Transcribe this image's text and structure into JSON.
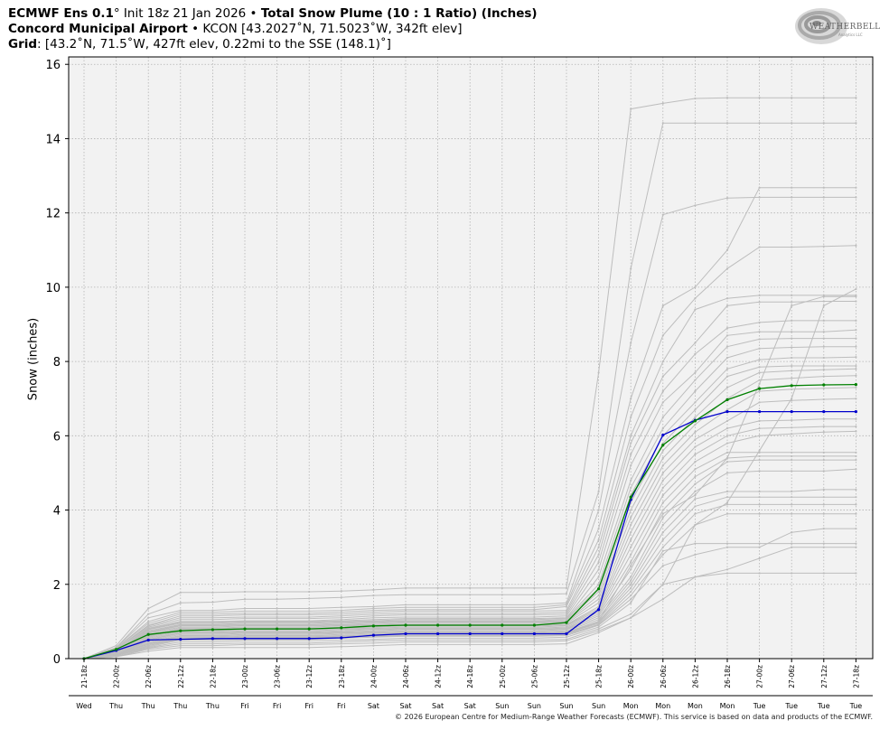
{
  "header": {
    "line1_model": "ECMWF Ens 0.1",
    "line1_deg": "°",
    "line1_init": " Init 18z 21 Jan 2026 • ",
    "line1_product": "Total Snow Plume (10 : 1 Ratio) (Inches)",
    "line2_site": "Concord Municipal Airport",
    "line2_rest": " • KCON [43.2027˚N, 71.5023˚W, 342ft elev]",
    "line3_grid": "Grid",
    "line3_rest": ": [43.2˚N, 71.5˚W, 427ft elev, 0.22mi to the SSE (148.1)˚]"
  },
  "logo": {
    "text": "WEATHERBELL",
    "sub": "Analytics LLC",
    "icon": "swirl-logo-icon"
  },
  "credit": "© 2026 European Centre for Medium-Range Weather Forecasts (ECMWF). This service is based on data and products of the ECMWF.",
  "chart_data": {
    "type": "line",
    "title": "Total Snow Plume (10 : 1 Ratio) (Inches)",
    "ylabel": "Snow (inches)",
    "ylim": [
      0,
      16.2
    ],
    "yticks": [
      0,
      2,
      4,
      6,
      8,
      10,
      12,
      14,
      16
    ],
    "grid": true,
    "categories": [
      "21-18z",
      "22-00z",
      "22-06z",
      "22-12z",
      "22-18z",
      "23-00z",
      "23-06z",
      "23-12z",
      "23-18z",
      "24-00z",
      "24-06z",
      "24-12z",
      "24-18z",
      "25-00z",
      "25-06z",
      "25-12z",
      "25-18z",
      "26-00z",
      "26-06z",
      "26-12z",
      "26-18z",
      "27-00z",
      "27-06z",
      "27-12z",
      "27-18z"
    ],
    "day_labels": [
      "Wed",
      "Thu",
      "Thu",
      "Thu",
      "Thu",
      "Fri",
      "Fri",
      "Fri",
      "Fri",
      "Sat",
      "Sat",
      "Sat",
      "Sat",
      "Sun",
      "Sun",
      "Sun",
      "Sun",
      "Mon",
      "Mon",
      "Mon",
      "Mon",
      "Tue",
      "Tue",
      "Tue",
      "Tue"
    ],
    "colors": {
      "member": "#bdbdbd",
      "mean": "#008000",
      "control": "#0000cc",
      "plot_bg": "#f2f2f2",
      "grid": "#b3b3b3"
    },
    "series": [
      {
        "role": "mean",
        "color": "#008000",
        "values": [
          0,
          0.25,
          0.65,
          0.75,
          0.78,
          0.8,
          0.8,
          0.8,
          0.83,
          0.88,
          0.9,
          0.9,
          0.9,
          0.9,
          0.9,
          0.97,
          1.88,
          4.35,
          5.75,
          6.4,
          6.97,
          7.27,
          7.35,
          7.37,
          7.38
        ]
      },
      {
        "role": "control",
        "color": "#0000cc",
        "values": [
          0,
          0.22,
          0.5,
          0.52,
          0.54,
          0.54,
          0.54,
          0.54,
          0.56,
          0.63,
          0.67,
          0.67,
          0.67,
          0.67,
          0.67,
          0.67,
          1.32,
          4.28,
          6.02,
          6.42,
          6.65,
          6.65,
          6.65,
          6.65,
          6.65
        ]
      },
      {
        "role": "member",
        "values": [
          0,
          0.35,
          1.35,
          1.78,
          1.78,
          1.8,
          1.8,
          1.8,
          1.82,
          1.85,
          1.9,
          1.9,
          1.9,
          1.9,
          1.9,
          1.9,
          7.7,
          14.8,
          14.95,
          15.08,
          15.1,
          15.1,
          15.1,
          15.1,
          15.1
        ]
      },
      {
        "role": "member",
        "values": [
          0,
          0.3,
          1.2,
          1.5,
          1.52,
          1.6,
          1.6,
          1.62,
          1.65,
          1.7,
          1.72,
          1.72,
          1.72,
          1.72,
          1.72,
          1.75,
          4.5,
          10.5,
          14.42,
          14.42,
          14.42,
          14.42,
          14.42,
          14.42,
          14.42
        ]
      },
      {
        "role": "member",
        "values": [
          0,
          0.3,
          1.1,
          1.3,
          1.3,
          1.35,
          1.35,
          1.35,
          1.38,
          1.4,
          1.45,
          1.45,
          1.45,
          1.45,
          1.45,
          1.5,
          4.0,
          8.5,
          11.95,
          12.2,
          12.4,
          12.42,
          12.42,
          12.42,
          12.42
        ]
      },
      {
        "role": "member",
        "values": [
          0,
          0.28,
          1.0,
          1.25,
          1.25,
          1.28,
          1.28,
          1.28,
          1.3,
          1.35,
          1.38,
          1.38,
          1.38,
          1.38,
          1.38,
          1.45,
          3.5,
          7.0,
          9.5,
          10.0,
          11.0,
          12.68,
          12.68,
          12.68,
          12.68
        ]
      },
      {
        "role": "member",
        "values": [
          0,
          0.28,
          0.95,
          1.2,
          1.2,
          1.22,
          1.22,
          1.22,
          1.25,
          1.3,
          1.32,
          1.32,
          1.32,
          1.32,
          1.32,
          1.4,
          3.2,
          6.5,
          8.7,
          9.7,
          10.5,
          11.08,
          11.08,
          11.1,
          11.12
        ]
      },
      {
        "role": "member",
        "values": [
          0,
          0.25,
          0.9,
          1.15,
          1.15,
          1.18,
          1.18,
          1.18,
          1.2,
          1.25,
          1.28,
          1.28,
          1.28,
          1.28,
          1.28,
          1.3,
          3.0,
          6.0,
          8.0,
          9.4,
          9.7,
          9.78,
          9.78,
          9.78,
          9.78
        ]
      },
      {
        "role": "member",
        "values": [
          0,
          0.25,
          0.88,
          1.1,
          1.1,
          1.12,
          1.12,
          1.12,
          1.15,
          1.2,
          1.22,
          1.22,
          1.22,
          1.22,
          1.22,
          1.25,
          2.8,
          5.8,
          7.6,
          8.5,
          9.5,
          9.6,
          9.6,
          9.62,
          9.62
        ]
      },
      {
        "role": "member",
        "values": [
          0,
          0.25,
          0.85,
          1.05,
          1.05,
          1.08,
          1.08,
          1.08,
          1.1,
          1.15,
          1.18,
          1.18,
          1.18,
          1.18,
          1.18,
          1.2,
          2.6,
          5.5,
          7.2,
          8.2,
          8.9,
          9.05,
          9.1,
          9.1,
          9.1
        ]
      },
      {
        "role": "member",
        "values": [
          0,
          0.22,
          0.82,
          1.0,
          1.0,
          1.02,
          1.02,
          1.02,
          1.05,
          1.1,
          1.12,
          1.12,
          1.12,
          1.12,
          1.12,
          1.15,
          2.4,
          5.2,
          6.9,
          7.7,
          8.7,
          8.8,
          8.8,
          8.8,
          8.85
        ]
      },
      {
        "role": "member",
        "values": [
          0,
          0.22,
          0.8,
          0.98,
          0.98,
          1.0,
          1.0,
          1.0,
          1.02,
          1.05,
          1.08,
          1.08,
          1.08,
          1.08,
          1.08,
          1.1,
          2.2,
          4.8,
          6.5,
          7.5,
          8.4,
          8.6,
          8.62,
          8.62,
          8.62
        ]
      },
      {
        "role": "member",
        "values": [
          0,
          0.22,
          0.78,
          0.95,
          0.95,
          0.98,
          0.98,
          0.98,
          1.0,
          1.02,
          1.05,
          1.05,
          1.05,
          1.05,
          1.05,
          1.08,
          2.0,
          4.6,
          6.2,
          7.2,
          8.1,
          8.35,
          8.38,
          8.4,
          8.4
        ]
      },
      {
        "role": "member",
        "values": [
          0,
          0.2,
          0.75,
          0.92,
          0.92,
          0.95,
          0.95,
          0.95,
          0.98,
          1.0,
          1.02,
          1.02,
          1.02,
          1.02,
          1.02,
          1.05,
          1.9,
          4.4,
          6.0,
          6.9,
          7.8,
          8.05,
          8.1,
          8.1,
          8.12
        ]
      },
      {
        "role": "member",
        "values": [
          0,
          0.2,
          0.72,
          0.9,
          0.9,
          0.92,
          0.92,
          0.92,
          0.95,
          0.98,
          1.0,
          1.0,
          1.0,
          1.0,
          1.0,
          1.02,
          1.8,
          4.2,
          5.8,
          6.7,
          7.6,
          7.85,
          7.88,
          7.88,
          7.88
        ]
      },
      {
        "role": "member",
        "values": [
          0,
          0.2,
          0.7,
          0.88,
          0.88,
          0.9,
          0.9,
          0.9,
          0.92,
          0.95,
          0.98,
          0.98,
          0.98,
          0.98,
          0.98,
          1.0,
          1.7,
          4.0,
          5.6,
          6.5,
          7.3,
          7.7,
          7.75,
          7.78,
          7.8
        ]
      },
      {
        "role": "member",
        "values": [
          0,
          0.18,
          0.68,
          0.85,
          0.85,
          0.88,
          0.88,
          0.88,
          0.9,
          0.92,
          0.95,
          0.95,
          0.95,
          0.95,
          0.95,
          0.98,
          1.6,
          3.8,
          5.4,
          6.3,
          7.0,
          7.5,
          7.55,
          7.6,
          7.62
        ]
      },
      {
        "role": "member",
        "values": [
          0,
          0.18,
          0.65,
          0.82,
          0.82,
          0.85,
          0.85,
          0.85,
          0.88,
          0.9,
          0.92,
          0.92,
          0.92,
          0.92,
          0.92,
          0.95,
          1.5,
          3.6,
          5.2,
          6.1,
          6.7,
          7.2,
          7.25,
          7.28,
          7.3
        ]
      },
      {
        "role": "member",
        "values": [
          0,
          0.18,
          0.62,
          0.8,
          0.8,
          0.82,
          0.82,
          0.82,
          0.85,
          0.88,
          0.9,
          0.9,
          0.9,
          0.9,
          0.9,
          0.92,
          1.4,
          3.4,
          5.0,
          5.9,
          6.4,
          6.9,
          6.95,
          6.98,
          7.0
        ]
      },
      {
        "role": "member",
        "values": [
          0,
          0.15,
          0.6,
          0.78,
          0.78,
          0.8,
          0.8,
          0.8,
          0.82,
          0.85,
          0.88,
          0.88,
          0.88,
          0.88,
          0.88,
          0.9,
          1.35,
          3.2,
          4.8,
          5.7,
          6.2,
          6.4,
          6.42,
          6.45,
          6.45
        ]
      },
      {
        "role": "member",
        "values": [
          0,
          0.15,
          0.58,
          0.75,
          0.75,
          0.78,
          0.78,
          0.78,
          0.8,
          0.82,
          0.85,
          0.85,
          0.85,
          0.85,
          0.85,
          0.88,
          1.3,
          3.0,
          4.6,
          5.5,
          6.0,
          6.2,
          6.22,
          6.25,
          6.25
        ]
      },
      {
        "role": "member",
        "values": [
          0,
          0.15,
          0.55,
          0.72,
          0.72,
          0.75,
          0.75,
          0.75,
          0.78,
          0.8,
          0.82,
          0.82,
          0.82,
          0.82,
          0.82,
          0.85,
          1.25,
          2.8,
          4.4,
          5.3,
          5.8,
          6.0,
          6.05,
          6.1,
          6.12
        ]
      },
      {
        "role": "member",
        "values": [
          0,
          0.15,
          0.52,
          0.7,
          0.7,
          0.72,
          0.72,
          0.72,
          0.75,
          0.78,
          0.8,
          0.8,
          0.8,
          0.8,
          0.8,
          0.82,
          1.2,
          2.6,
          4.2,
          5.1,
          5.55,
          5.55,
          5.55,
          5.55,
          5.55
        ]
      },
      {
        "role": "member",
        "values": [
          0,
          0.12,
          0.5,
          0.68,
          0.68,
          0.7,
          0.7,
          0.7,
          0.72,
          0.75,
          0.78,
          0.78,
          0.78,
          0.78,
          0.78,
          0.8,
          1.15,
          2.4,
          4.0,
          4.9,
          5.4,
          5.45,
          5.45,
          5.45,
          5.45
        ]
      },
      {
        "role": "member",
        "values": [
          0,
          0.12,
          0.48,
          0.65,
          0.65,
          0.68,
          0.68,
          0.68,
          0.7,
          0.72,
          0.75,
          0.75,
          0.75,
          0.75,
          0.75,
          0.78,
          1.1,
          2.2,
          3.8,
          4.7,
          5.3,
          5.35,
          5.35,
          5.35,
          5.35
        ]
      },
      {
        "role": "member",
        "values": [
          0,
          0.12,
          0.45,
          0.62,
          0.62,
          0.65,
          0.65,
          0.65,
          0.68,
          0.7,
          0.72,
          0.72,
          0.72,
          0.72,
          0.72,
          0.75,
          1.05,
          2.1,
          3.6,
          4.5,
          5.0,
          5.05,
          5.05,
          5.05,
          5.1
        ]
      },
      {
        "role": "member",
        "values": [
          0,
          0.1,
          0.42,
          0.6,
          0.6,
          0.62,
          0.62,
          0.62,
          0.65,
          0.68,
          0.7,
          0.7,
          0.7,
          0.7,
          0.7,
          0.72,
          1.0,
          2.0,
          3.4,
          4.3,
          4.5,
          4.5,
          4.5,
          4.55,
          4.55
        ]
      },
      {
        "role": "member",
        "values": [
          0,
          0.1,
          0.4,
          0.58,
          0.58,
          0.6,
          0.6,
          0.6,
          0.62,
          0.65,
          0.68,
          0.68,
          0.68,
          0.68,
          0.68,
          0.7,
          0.98,
          1.9,
          3.2,
          4.1,
          4.35,
          4.35,
          4.35,
          4.35,
          4.35
        ]
      },
      {
        "role": "member",
        "values": [
          0,
          0.1,
          0.38,
          0.55,
          0.55,
          0.58,
          0.58,
          0.58,
          0.6,
          0.62,
          0.65,
          0.65,
          0.65,
          0.65,
          0.65,
          0.68,
          0.95,
          1.8,
          3.0,
          3.9,
          4.15,
          4.15,
          4.15,
          4.15,
          4.15
        ]
      },
      {
        "role": "member",
        "values": [
          0,
          0.08,
          0.35,
          0.52,
          0.52,
          0.55,
          0.55,
          0.55,
          0.58,
          0.6,
          0.62,
          0.62,
          0.62,
          0.62,
          0.62,
          0.65,
          0.92,
          1.7,
          2.8,
          3.6,
          3.9,
          3.9,
          3.9,
          3.9,
          3.9
        ]
      },
      {
        "role": "member",
        "values": [
          0,
          0.08,
          0.32,
          0.5,
          0.5,
          0.52,
          0.52,
          0.52,
          0.55,
          0.58,
          0.6,
          0.6,
          0.6,
          0.6,
          0.6,
          0.62,
          0.9,
          1.6,
          2.5,
          2.8,
          3.0,
          3.0,
          3.4,
          3.5,
          3.5
        ]
      },
      {
        "role": "member",
        "values": [
          0,
          0.08,
          0.3,
          0.45,
          0.45,
          0.48,
          0.48,
          0.48,
          0.5,
          0.52,
          0.55,
          0.55,
          0.55,
          0.55,
          0.55,
          0.58,
          0.85,
          1.5,
          2.9,
          3.1,
          3.1,
          3.1,
          3.1,
          3.1,
          3.1
        ]
      },
      {
        "role": "member",
        "values": [
          0,
          0.05,
          0.28,
          0.4,
          0.4,
          0.42,
          0.42,
          0.42,
          0.45,
          0.48,
          0.5,
          0.5,
          0.5,
          0.5,
          0.5,
          0.52,
          0.8,
          1.2,
          2.0,
          2.2,
          2.3,
          2.3,
          2.3,
          2.3,
          2.3
        ]
      },
      {
        "role": "member",
        "values": [
          0,
          0.05,
          0.25,
          0.35,
          0.35,
          0.38,
          0.38,
          0.38,
          0.4,
          0.42,
          0.45,
          0.45,
          0.45,
          0.45,
          0.45,
          0.48,
          0.75,
          1.1,
          1.6,
          2.2,
          2.4,
          2.7,
          3.0,
          3.0,
          3.0
        ]
      },
      {
        "role": "member",
        "values": [
          0,
          0.05,
          0.2,
          0.3,
          0.3,
          0.3,
          0.3,
          0.3,
          0.32,
          0.35,
          0.38,
          0.38,
          0.38,
          0.38,
          0.38,
          0.4,
          0.7,
          1.1,
          2.0,
          3.6,
          4.2,
          5.6,
          7.0,
          9.5,
          9.95
        ]
      },
      {
        "role": "member",
        "values": [
          0,
          0.08,
          0.35,
          0.55,
          0.55,
          0.56,
          0.56,
          0.56,
          0.58,
          0.6,
          0.62,
          0.62,
          0.62,
          0.62,
          0.62,
          0.65,
          1.0,
          2.5,
          3.9,
          4.4,
          5.4,
          7.4,
          9.5,
          9.75,
          9.75
        ]
      }
    ]
  }
}
